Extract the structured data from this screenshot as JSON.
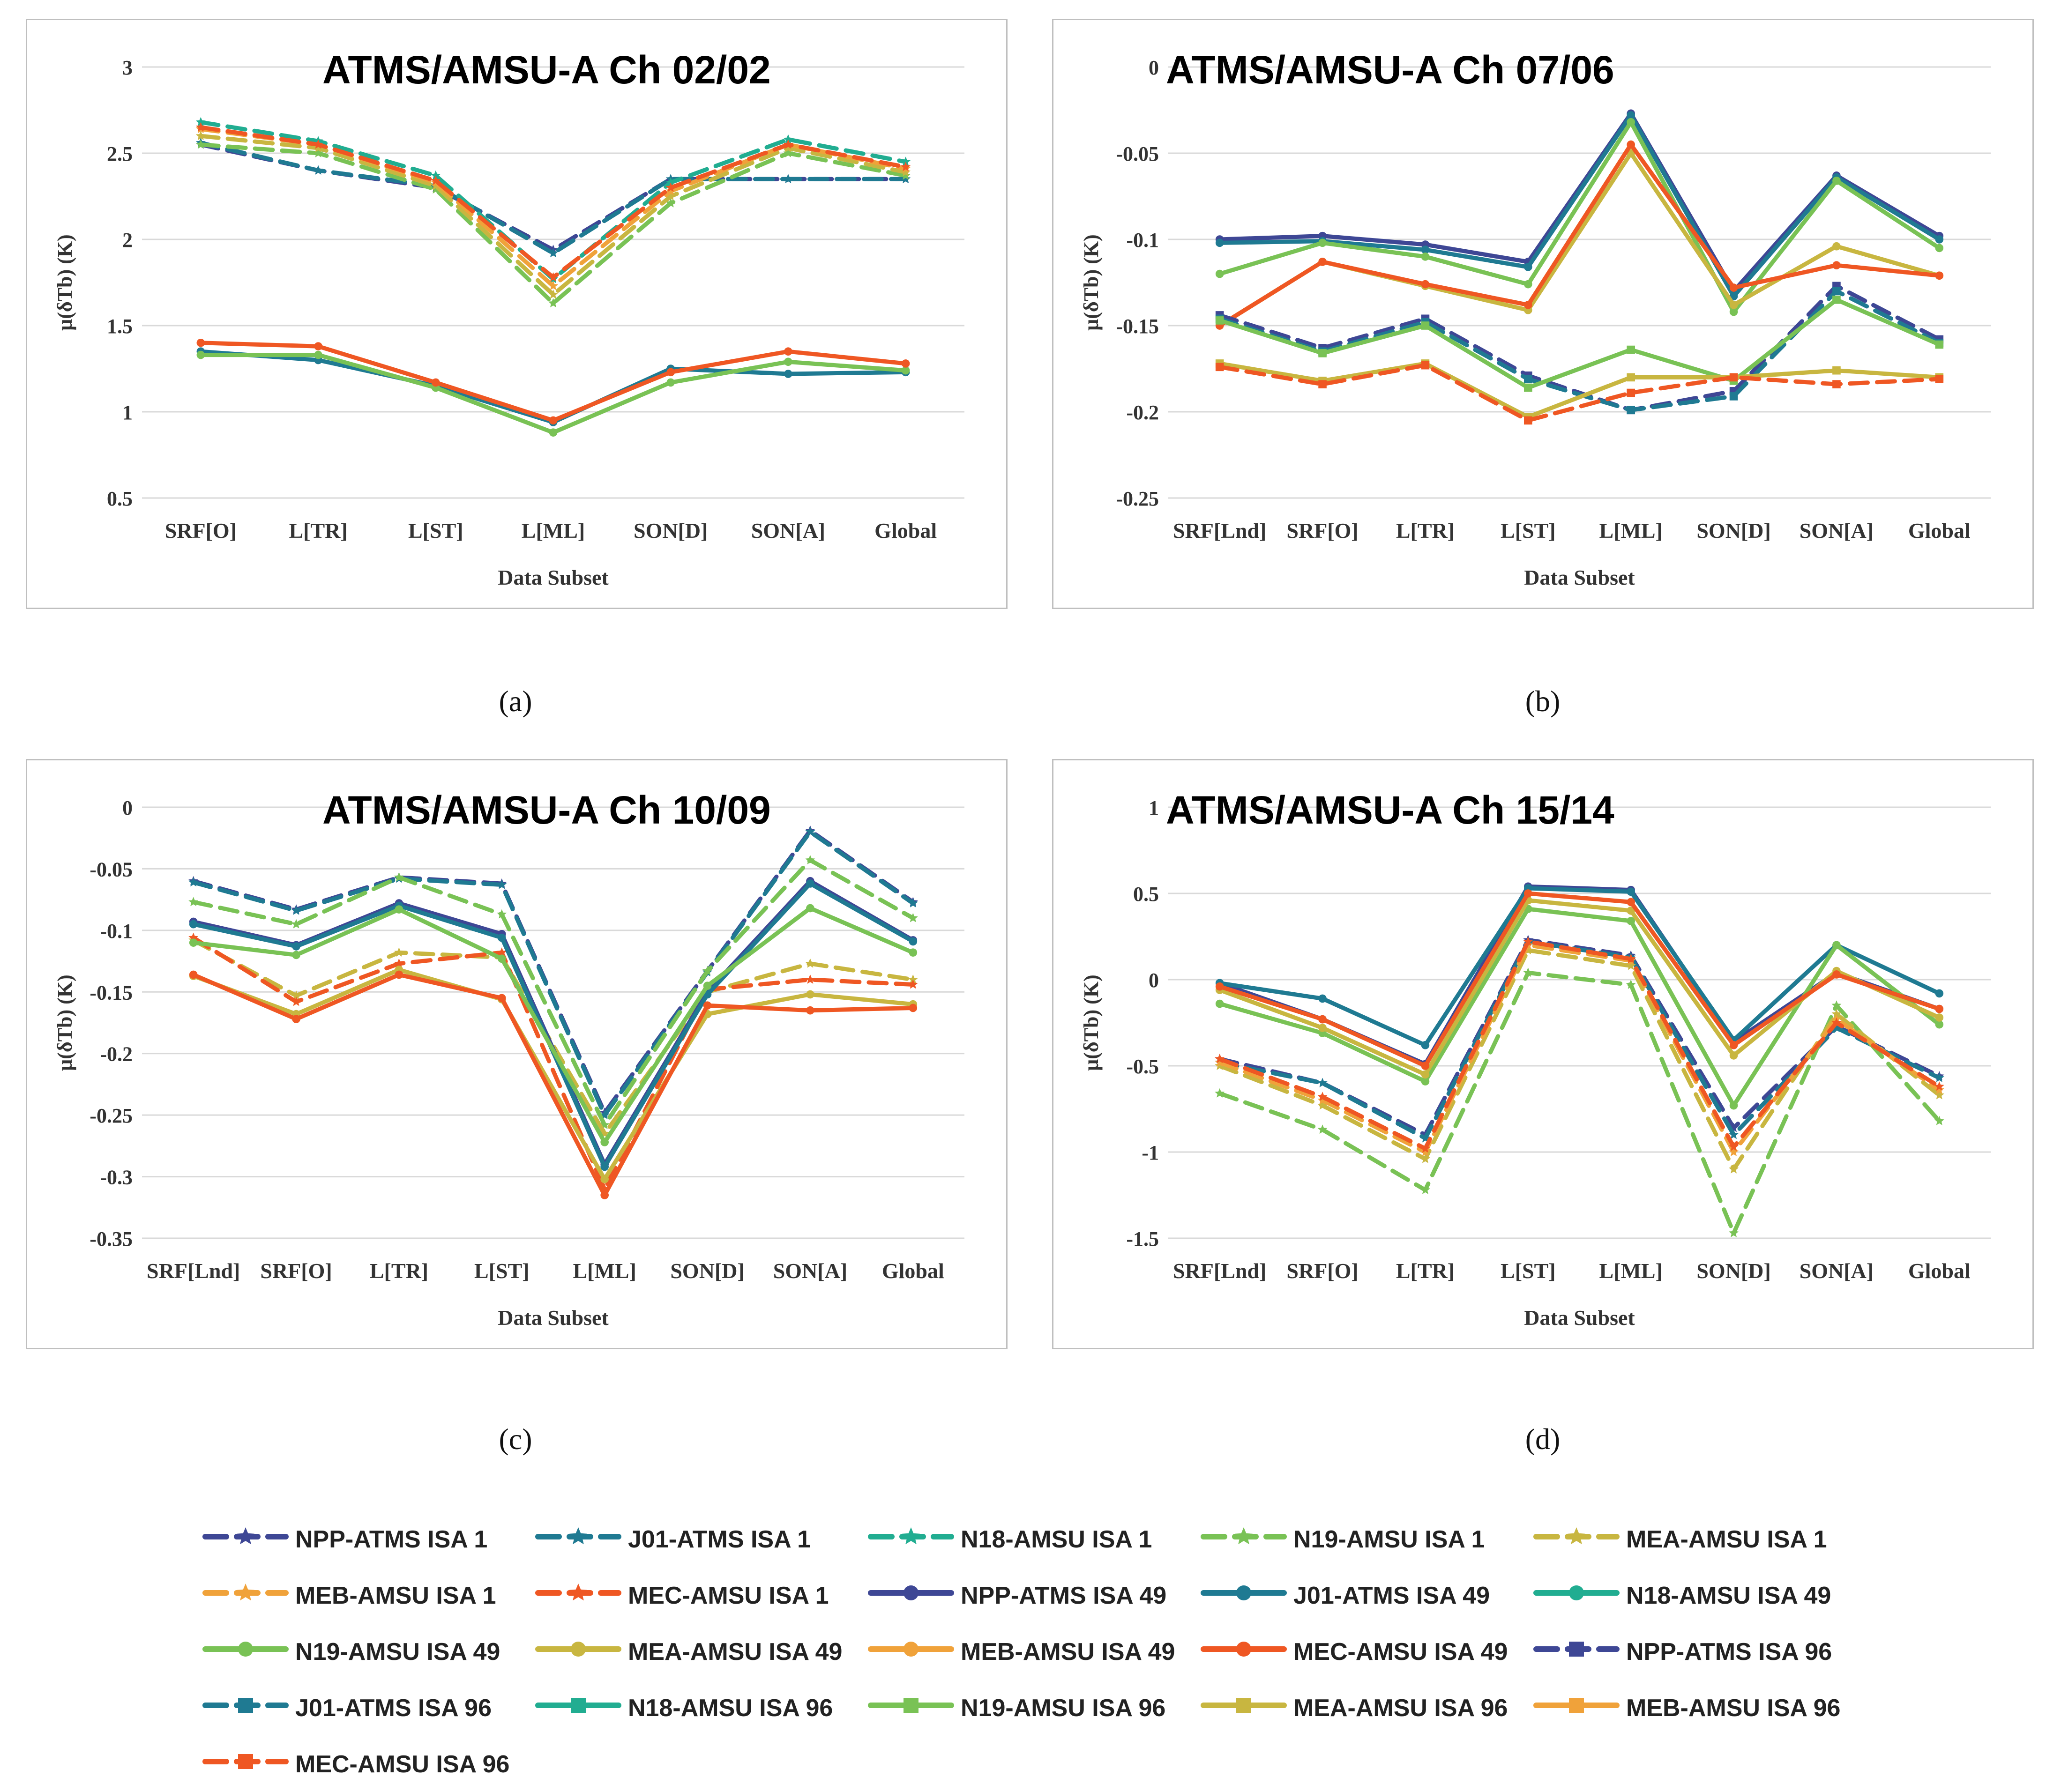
{
  "captions": [
    "(a)",
    "(b)",
    "(c)",
    "(d)"
  ],
  "series_styles": {
    "NPP-ATMS": "#3e4795",
    "J01-ATMS": "#1f7a92",
    "N18-AMSU": "#21ad91",
    "N19-AMSU": "#79c255",
    "MEA-AMSU": "#c8b640",
    "MEB-AMSU": "#f0a23a",
    "MEC-AMSU": "#ef5723"
  },
  "legend": [
    {
      "label": "NPP-ATMS ISA 1",
      "sensor": "NPP-ATMS",
      "marker": "star",
      "dash": true
    },
    {
      "label": "J01-ATMS ISA 1",
      "sensor": "J01-ATMS",
      "marker": "star",
      "dash": true
    },
    {
      "label": "N18-AMSU ISA 1",
      "sensor": "N18-AMSU",
      "marker": "star",
      "dash": true
    },
    {
      "label": "N19-AMSU ISA 1",
      "sensor": "N19-AMSU",
      "marker": "star",
      "dash": true
    },
    {
      "label": "MEA-AMSU ISA 1",
      "sensor": "MEA-AMSU",
      "marker": "star",
      "dash": true
    },
    {
      "label": "MEB-AMSU ISA 1",
      "sensor": "MEB-AMSU",
      "marker": "star",
      "dash": true
    },
    {
      "label": "MEC-AMSU ISA 1",
      "sensor": "MEC-AMSU",
      "marker": "star",
      "dash": true
    },
    {
      "label": "NPP-ATMS ISA 49",
      "sensor": "NPP-ATMS",
      "marker": "circle",
      "dash": false
    },
    {
      "label": "J01-ATMS ISA 49",
      "sensor": "J01-ATMS",
      "marker": "circle",
      "dash": false
    },
    {
      "label": "N18-AMSU ISA 49",
      "sensor": "N18-AMSU",
      "marker": "circle",
      "dash": false
    },
    {
      "label": "N19-AMSU ISA 49",
      "sensor": "N19-AMSU",
      "marker": "circle",
      "dash": false
    },
    {
      "label": "MEA-AMSU ISA 49",
      "sensor": "MEA-AMSU",
      "marker": "circle",
      "dash": false
    },
    {
      "label": "MEB-AMSU ISA 49",
      "sensor": "MEB-AMSU",
      "marker": "circle",
      "dash": false
    },
    {
      "label": "MEC-AMSU ISA 49",
      "sensor": "MEC-AMSU",
      "marker": "circle",
      "dash": false
    },
    {
      "label": "NPP-ATMS ISA 96",
      "sensor": "NPP-ATMS",
      "marker": "square",
      "dash": true
    },
    {
      "label": "J01-ATMS ISA 96",
      "sensor": "J01-ATMS",
      "marker": "square",
      "dash": true
    },
    {
      "label": "N18-AMSU ISA 96",
      "sensor": "N18-AMSU",
      "marker": "square",
      "dash": false
    },
    {
      "label": "N19-AMSU ISA 96",
      "sensor": "N19-AMSU",
      "marker": "square",
      "dash": false
    },
    {
      "label": "MEA-AMSU ISA 96",
      "sensor": "MEA-AMSU",
      "marker": "square",
      "dash": false
    },
    {
      "label": "MEB-AMSU ISA 96",
      "sensor": "MEB-AMSU",
      "marker": "square",
      "dash": false
    },
    {
      "label": "MEC-AMSU ISA 96",
      "sensor": "MEC-AMSU",
      "marker": "square",
      "dash": true
    }
  ],
  "chart_data": [
    {
      "type": "line",
      "title": "ATMS/AMSU-A Ch 02/02",
      "xlabel": "Data Subset",
      "ylabel": "μ(δTb) (K)",
      "ylim": [
        0.5,
        3
      ],
      "yticks": [
        3,
        2.5,
        2,
        1.5,
        1,
        0.5
      ],
      "ytick_labels": [
        "3",
        "2.5",
        "2",
        "1.5",
        "1",
        "0.5"
      ],
      "categories": [
        "SRF[O]",
        "L[TR]",
        "L[ST]",
        "L[ML]",
        "SON[D]",
        "SON[A]",
        "Global"
      ],
      "series": [
        {
          "name": "NPP-ATMS ISA 1",
          "values": [
            2.55,
            2.4,
            2.3,
            1.94,
            2.35,
            2.35,
            2.35
          ]
        },
        {
          "name": "J01-ATMS ISA 1",
          "values": [
            2.56,
            2.4,
            2.31,
            1.92,
            2.35,
            2.35,
            2.35
          ]
        },
        {
          "name": "N18-AMSU ISA 1",
          "values": [
            2.68,
            2.57,
            2.37,
            1.77,
            2.33,
            2.58,
            2.45
          ]
        },
        {
          "name": "N19-AMSU ISA 1",
          "values": [
            2.55,
            2.5,
            2.29,
            1.63,
            2.21,
            2.5,
            2.37
          ]
        },
        {
          "name": "MEA-AMSU ISA 1",
          "values": [
            2.6,
            2.53,
            2.31,
            1.68,
            2.25,
            2.53,
            2.39
          ]
        },
        {
          "name": "MEB-AMSU ISA 1",
          "values": [
            2.64,
            2.55,
            2.33,
            1.73,
            2.28,
            2.55,
            2.41
          ]
        },
        {
          "name": "MEC-AMSU ISA 1",
          "values": [
            2.65,
            2.55,
            2.34,
            1.78,
            2.3,
            2.55,
            2.42
          ]
        },
        {
          "name": "J01-ATMS ISA 49",
          "values": [
            1.35,
            1.3,
            1.15,
            0.94,
            1.25,
            1.22,
            1.23
          ]
        },
        {
          "name": "N19-AMSU ISA 49",
          "values": [
            1.33,
            1.33,
            1.14,
            0.88,
            1.17,
            1.29,
            1.24
          ]
        },
        {
          "name": "MEC-AMSU ISA 49",
          "values": [
            1.4,
            1.38,
            1.17,
            0.95,
            1.23,
            1.35,
            1.28
          ]
        }
      ]
    },
    {
      "type": "line",
      "title": "ATMS/AMSU-A Ch 07/06",
      "xlabel": "Data Subset",
      "ylabel": "μ(δTb) (K)",
      "ylim": [
        -0.25,
        0
      ],
      "yticks": [
        0,
        -0.05,
        -0.1,
        -0.15,
        -0.2,
        -0.25
      ],
      "ytick_labels": [
        "0",
        "-0.05",
        "-0.1",
        "-0.15",
        "-0.2",
        "-0.25"
      ],
      "categories": [
        "SRF[Lnd]",
        "SRF[O]",
        "L[TR]",
        "L[ST]",
        "L[ML]",
        "SON[D]",
        "SON[A]",
        "Global"
      ],
      "series": [
        {
          "name": "NPP-ATMS ISA 49",
          "values": [
            -0.1,
            -0.098,
            -0.103,
            -0.113,
            -0.027,
            -0.13,
            -0.063,
            -0.098
          ]
        },
        {
          "name": "J01-ATMS ISA 49",
          "values": [
            -0.102,
            -0.101,
            -0.106,
            -0.116,
            -0.028,
            -0.133,
            -0.064,
            -0.1
          ]
        },
        {
          "name": "N19-AMSU ISA 49",
          "values": [
            -0.12,
            -0.102,
            -0.11,
            -0.126,
            -0.032,
            -0.142,
            -0.066,
            -0.105
          ]
        },
        {
          "name": "MEA-AMSU ISA 49",
          "values": [
            -0.15,
            -0.113,
            -0.127,
            -0.141,
            -0.05,
            -0.138,
            -0.104,
            -0.121
          ]
        },
        {
          "name": "MEC-AMSU ISA 49",
          "values": [
            -0.15,
            -0.113,
            -0.126,
            -0.138,
            -0.045,
            -0.128,
            -0.115,
            -0.121
          ]
        },
        {
          "name": "NPP-ATMS ISA 96",
          "values": [
            -0.144,
            -0.163,
            -0.146,
            -0.179,
            -0.199,
            -0.188,
            -0.127,
            -0.158
          ]
        },
        {
          "name": "J01-ATMS ISA 96",
          "values": [
            -0.146,
            -0.165,
            -0.148,
            -0.181,
            -0.199,
            -0.191,
            -0.13,
            -0.16
          ]
        },
        {
          "name": "N19-AMSU ISA 96",
          "values": [
            -0.147,
            -0.166,
            -0.15,
            -0.186,
            -0.164,
            -0.182,
            -0.135,
            -0.161
          ]
        },
        {
          "name": "MEA-AMSU ISA 96",
          "values": [
            -0.172,
            -0.182,
            -0.172,
            -0.203,
            -0.18,
            -0.18,
            -0.176,
            -0.18
          ]
        },
        {
          "name": "MEC-AMSU ISA 96",
          "values": [
            -0.174,
            -0.184,
            -0.173,
            -0.205,
            -0.189,
            -0.18,
            -0.184,
            -0.181
          ]
        }
      ]
    },
    {
      "type": "line",
      "title": "ATMS/AMSU-A Ch 10/09",
      "xlabel": "Data Subset",
      "ylabel": "μ(δTb) (K)",
      "ylim": [
        -0.35,
        0
      ],
      "yticks": [
        0,
        -0.05,
        -0.1,
        -0.15,
        -0.2,
        -0.25,
        -0.3,
        -0.35
      ],
      "ytick_labels": [
        "0",
        "-0.05",
        "-0.1",
        "-0.15",
        "-0.2",
        "-0.25",
        "-0.3",
        "-0.35"
      ],
      "categories": [
        "SRF[Lnd]",
        "SRF[O]",
        "L[TR]",
        "L[ST]",
        "L[ML]",
        "SON[D]",
        "SON[A]",
        "Global"
      ],
      "series": [
        {
          "name": "NPP-ATMS ISA 1",
          "values": [
            -0.06,
            -0.083,
            -0.057,
            -0.062,
            -0.248,
            -0.133,
            -0.019,
            -0.077
          ]
        },
        {
          "name": "J01-ATMS ISA 1",
          "values": [
            -0.061,
            -0.084,
            -0.058,
            -0.063,
            -0.25,
            -0.134,
            -0.02,
            -0.078
          ]
        },
        {
          "name": "N19-AMSU ISA 1",
          "values": [
            -0.077,
            -0.095,
            -0.057,
            -0.087,
            -0.258,
            -0.133,
            -0.043,
            -0.09
          ]
        },
        {
          "name": "MEA-AMSU ISA 1",
          "values": [
            -0.108,
            -0.153,
            -0.118,
            -0.122,
            -0.265,
            -0.15,
            -0.127,
            -0.14
          ]
        },
        {
          "name": "MEC-AMSU ISA 1",
          "values": [
            -0.106,
            -0.158,
            -0.127,
            -0.118,
            -0.31,
            -0.148,
            -0.14,
            -0.144
          ]
        },
        {
          "name": "NPP-ATMS ISA 49",
          "values": [
            -0.093,
            -0.112,
            -0.078,
            -0.103,
            -0.29,
            -0.15,
            -0.06,
            -0.108
          ]
        },
        {
          "name": "J01-ATMS ISA 49",
          "values": [
            -0.095,
            -0.113,
            -0.08,
            -0.106,
            -0.292,
            -0.152,
            -0.062,
            -0.109
          ]
        },
        {
          "name": "N19-AMSU ISA 49",
          "values": [
            -0.11,
            -0.12,
            -0.083,
            -0.123,
            -0.272,
            -0.145,
            -0.082,
            -0.118
          ]
        },
        {
          "name": "MEA-AMSU ISA 49",
          "values": [
            -0.137,
            -0.168,
            -0.132,
            -0.156,
            -0.302,
            -0.168,
            -0.152,
            -0.16
          ]
        },
        {
          "name": "MEC-AMSU ISA 49",
          "values": [
            -0.136,
            -0.172,
            -0.136,
            -0.155,
            -0.315,
            -0.161,
            -0.165,
            -0.163
          ]
        }
      ]
    },
    {
      "type": "line",
      "title": "ATMS/AMSU-A Ch 15/14",
      "xlabel": "Data Subset",
      "ylabel": "μ(δTb) (K)",
      "ylim": [
        -1.5,
        1
      ],
      "yticks": [
        1,
        0.5,
        0,
        -0.5,
        -1,
        -1.5
      ],
      "ytick_labels": [
        "1",
        "0.5",
        "0",
        "-0.5",
        "-1",
        "-1.5"
      ],
      "categories": [
        "SRF[Lnd]",
        "SRF[O]",
        "L[TR]",
        "L[ST]",
        "L[ML]",
        "SON[D]",
        "SON[A]",
        "Global"
      ],
      "series": [
        {
          "name": "NPP-ATMS ISA 1",
          "values": [
            -0.46,
            -0.6,
            -0.9,
            0.23,
            0.14,
            -0.86,
            -0.27,
            -0.56
          ]
        },
        {
          "name": "J01-ATMS ISA 1",
          "values": [
            -0.48,
            -0.6,
            -0.92,
            0.22,
            0.13,
            -0.9,
            -0.28,
            -0.57
          ]
        },
        {
          "name": "N19-AMSU ISA 1",
          "values": [
            -0.66,
            -0.87,
            -1.22,
            0.04,
            -0.03,
            -1.47,
            -0.15,
            -0.82
          ]
        },
        {
          "name": "MEA-AMSU ISA 1",
          "values": [
            -0.5,
            -0.73,
            -1.04,
            0.17,
            0.08,
            -1.1,
            -0.2,
            -0.67
          ]
        },
        {
          "name": "MEB-AMSU ISA 1",
          "values": [
            -0.48,
            -0.7,
            -1.0,
            0.2,
            0.11,
            -1.0,
            -0.23,
            -0.64
          ]
        },
        {
          "name": "MEC-AMSU ISA 1",
          "values": [
            -0.46,
            -0.68,
            -0.98,
            0.22,
            0.12,
            -0.97,
            -0.25,
            -0.62
          ]
        },
        {
          "name": "NPP-ATMS ISA 49",
          "values": [
            -0.02,
            -0.23,
            -0.49,
            0.54,
            0.52,
            -0.36,
            0.04,
            -0.17
          ]
        },
        {
          "name": "J01-ATMS ISA 49",
          "values": [
            -0.02,
            -0.11,
            -0.38,
            0.53,
            0.51,
            -0.35,
            0.2,
            -0.08
          ]
        },
        {
          "name": "N19-AMSU ISA 49",
          "values": [
            -0.14,
            -0.31,
            -0.59,
            0.41,
            0.34,
            -0.73,
            0.2,
            -0.26
          ]
        },
        {
          "name": "MEA-AMSU ISA 49",
          "values": [
            -0.06,
            -0.28,
            -0.55,
            0.46,
            0.4,
            -0.44,
            0.05,
            -0.22
          ]
        },
        {
          "name": "MEC-AMSU ISA 49",
          "values": [
            -0.04,
            -0.23,
            -0.5,
            0.5,
            0.45,
            -0.38,
            0.03,
            -0.17
          ]
        }
      ]
    }
  ]
}
